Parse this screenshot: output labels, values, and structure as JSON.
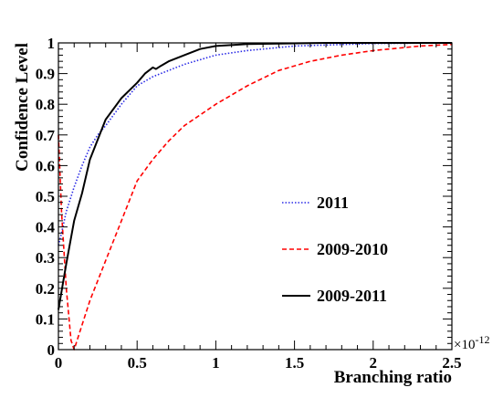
{
  "chart_data": {
    "type": "line",
    "xlabel": "Branching ratio",
    "ylabel": "Confidence Level",
    "x_exponent": "×10",
    "x_exponent_power": "-12",
    "xlim": [
      0,
      2.5
    ],
    "ylim": [
      0,
      1
    ],
    "xticks": [
      "0",
      "0.5",
      "1",
      "1.5",
      "2",
      "2.5"
    ],
    "xtick_values": [
      0,
      0.5,
      1,
      1.5,
      2,
      2.5
    ],
    "yticks": [
      "0",
      "0.1",
      "0.2",
      "0.3",
      "0.4",
      "0.5",
      "0.6",
      "0.7",
      "0.8",
      "0.9",
      "1"
    ],
    "ytick_values": [
      0,
      0.1,
      0.2,
      0.3,
      0.4,
      0.5,
      0.6,
      0.7,
      0.8,
      0.9,
      1
    ],
    "grid": false,
    "legend_position": "center-right",
    "series": [
      {
        "name": "2011",
        "color": "#2a2ae6",
        "dash": "dotted",
        "x": [
          0,
          0.02,
          0.05,
          0.1,
          0.15,
          0.2,
          0.25,
          0.3,
          0.4,
          0.5,
          0.6,
          0.7,
          0.8,
          1.0,
          1.2,
          1.5,
          2.0,
          2.5
        ],
        "y": [
          0.34,
          0.38,
          0.45,
          0.53,
          0.6,
          0.66,
          0.7,
          0.73,
          0.8,
          0.86,
          0.89,
          0.91,
          0.93,
          0.96,
          0.975,
          0.99,
          0.998,
          1.0
        ]
      },
      {
        "name": "2009-2010",
        "color": "#ff0000",
        "dash": "dashed",
        "x": [
          0,
          0.02,
          0.05,
          0.08,
          0.1,
          0.2,
          0.3,
          0.4,
          0.5,
          0.6,
          0.7,
          0.8,
          1.0,
          1.2,
          1.4,
          1.6,
          1.8,
          2.0,
          2.3,
          2.5
        ],
        "y": [
          0.7,
          0.45,
          0.2,
          0.03,
          0.0,
          0.16,
          0.29,
          0.42,
          0.55,
          0.62,
          0.68,
          0.73,
          0.8,
          0.86,
          0.91,
          0.94,
          0.96,
          0.975,
          0.99,
          0.995
        ]
      },
      {
        "name": "2009-2011",
        "color": "#000000",
        "dash": "solid",
        "x": [
          0,
          0.05,
          0.1,
          0.15,
          0.2,
          0.3,
          0.4,
          0.5,
          0.55,
          0.6,
          0.62,
          0.65,
          0.7,
          0.8,
          0.9,
          1.0,
          1.2,
          1.4,
          1.7,
          2.0,
          2.5
        ],
        "y": [
          0.13,
          0.28,
          0.42,
          0.51,
          0.62,
          0.75,
          0.82,
          0.87,
          0.9,
          0.92,
          0.915,
          0.925,
          0.94,
          0.96,
          0.98,
          0.99,
          0.996,
          0.998,
          1.0,
          1.0,
          1.0
        ]
      }
    ]
  }
}
